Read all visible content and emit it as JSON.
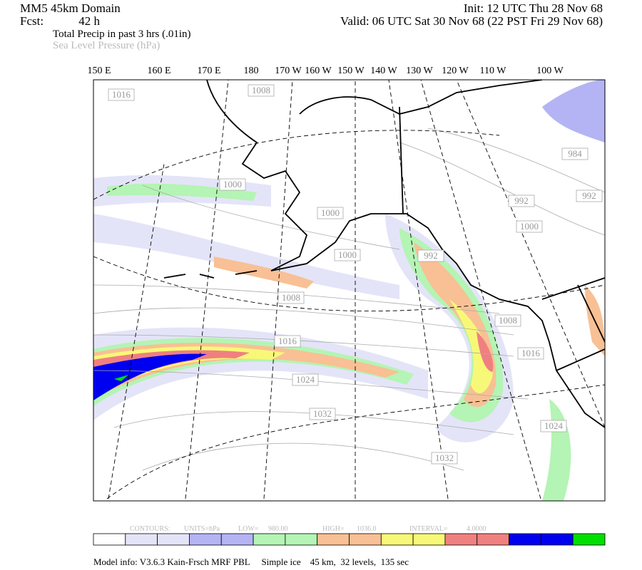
{
  "header": {
    "model": "MM5 45km Domain",
    "fcst_label": "Fcst:",
    "fcst": "42 h",
    "init": "Init: 12 UTC Thu 28 Nov 68",
    "valid": "Valid: 06 UTC Sat 30 Nov 68 (22 PST Fri 29 Nov 68)",
    "field1": "Total Precip in past 3 hrs (.01in)",
    "field2": "Sea Level Pressure (hPa)"
  },
  "longitudes": [
    "150 E",
    "160 E",
    "170 E",
    "180",
    "170 W",
    "160 W",
    "150 W",
    "140 W",
    "130 W",
    "120 W",
    "110 W",
    "100 W"
  ],
  "contour_labels": [
    "1016",
    "1008",
    "1000",
    "1000",
    "1000",
    "992",
    "1008",
    "1016",
    "1024",
    "1032",
    "1032",
    "1008",
    "1016",
    "1024",
    "984",
    "992",
    "992",
    "1000"
  ],
  "footer": {
    "contours": "CONTOURS:",
    "units": "UNITS=hPa",
    "low": "LOW=",
    "low_value": "980.00",
    "high": "HIGH=",
    "high_value": "1036.0",
    "interval": "INTERVAL=",
    "interval_value": "4.0000",
    "model_info": "Model info: V3.6.3 Kain-Frsch MRF PBL     Simple ice    45 km,  32 levels,  135 sec"
  },
  "colorbar": [
    "#ffffff",
    "#e4e4f8",
    "#e4e4f8",
    "#b4b4f4",
    "#b4b4f4",
    "#b4f4b4",
    "#b4f4b4",
    "#f8c094",
    "#f8c094",
    "#f8f878",
    "#f8f878",
    "#f08080",
    "#f08080",
    "#0000f0",
    "#0000f0",
    "#00e000"
  ]
}
